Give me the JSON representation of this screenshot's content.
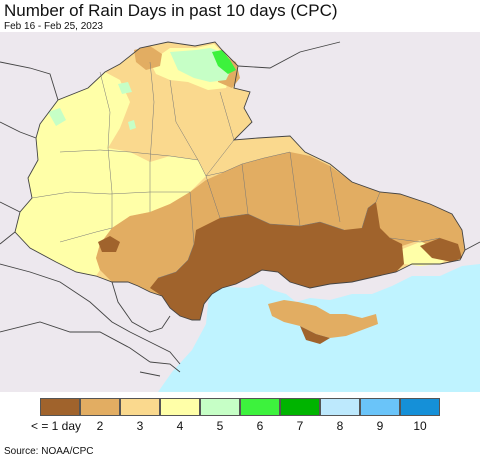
{
  "title": "Number of Rain Days in past 10 days (CPC)",
  "subtitle": "Feb 16 - Feb 25, 2023",
  "source": "Source: NOAA/CPC",
  "colors": {
    "background_land": "#ede8ee",
    "sea": "#bff3ff",
    "border": "#444444"
  },
  "legend": [
    {
      "label": "< = 1 day",
      "color": "#a0632c"
    },
    {
      "label": "2",
      "color": "#e2ad62"
    },
    {
      "label": "3",
      "color": "#fad98e"
    },
    {
      "label": "4",
      "color": "#ffffa8"
    },
    {
      "label": "5",
      "color": "#c6ffc6"
    },
    {
      "label": "6",
      "color": "#3df23d"
    },
    {
      "label": "7",
      "color": "#00b400"
    },
    {
      "label": "8",
      "color": "#bde9fd"
    },
    {
      "label": "9",
      "color": "#6ac4f9"
    },
    {
      "label": "10",
      "color": "#1590d8"
    }
  ]
}
